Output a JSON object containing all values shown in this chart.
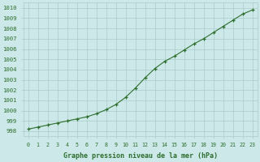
{
  "x": [
    0,
    1,
    2,
    3,
    4,
    5,
    6,
    7,
    8,
    9,
    10,
    11,
    12,
    13,
    14,
    15,
    16,
    17,
    18,
    19,
    20,
    21,
    22,
    23
  ],
  "y": [
    998.2,
    998.4,
    998.6,
    998.8,
    999.0,
    999.2,
    999.4,
    999.7,
    1000.1,
    1000.6,
    1001.3,
    1002.2,
    1003.2,
    1004.1,
    1004.8,
    1005.3,
    1005.9,
    1006.5,
    1007.0,
    1007.6,
    1008.2,
    1008.8,
    1009.4,
    1009.8
  ],
  "line_color": "#2d6e2d",
  "marker": "+",
  "background_color": "#cce8e8",
  "grid_color": "#aacaca",
  "ylabel_values": [
    998,
    999,
    1000,
    1001,
    1002,
    1003,
    1004,
    1005,
    1006,
    1007,
    1008,
    1009,
    1010
  ],
  "ylim": [
    997.5,
    1010.5
  ],
  "xlim": [
    -0.5,
    23.5
  ],
  "xlabel": "Graphe pression niveau de la mer (hPa)",
  "tick_color": "#2d6e2d",
  "font_family": "monospace"
}
